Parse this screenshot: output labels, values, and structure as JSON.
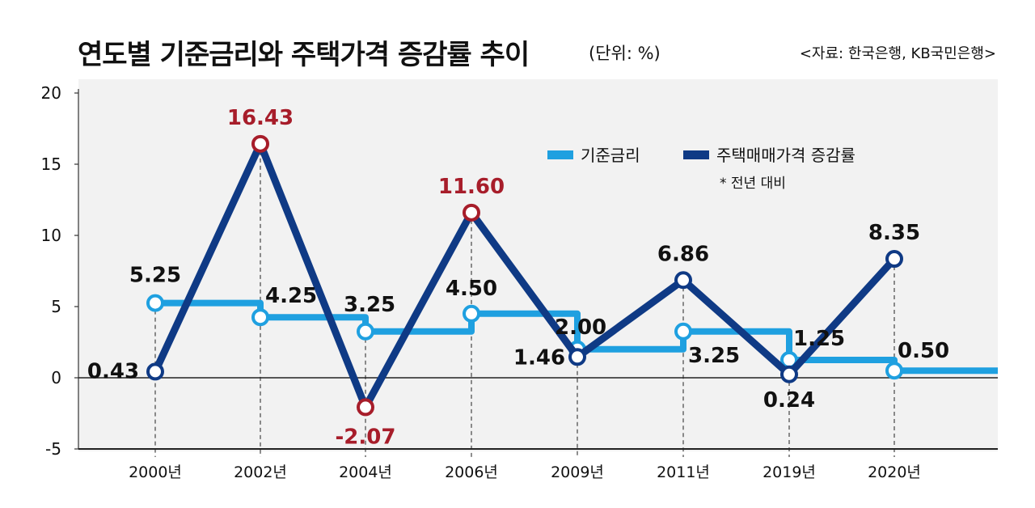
{
  "header": {
    "title": "연도별 기준금리와 주택가격 증감률 추이",
    "unit": "(단위: %)",
    "source": "<자료: 한국은행, KB국민은행>"
  },
  "chart_data": {
    "type": "line",
    "categories": [
      "2000년",
      "2002년",
      "2004년",
      "2006년",
      "2009년",
      "2011년",
      "2019년",
      "2020년"
    ],
    "ylim": [
      -5,
      20
    ],
    "yticks": [
      "-5",
      "0",
      "5",
      "10",
      "15",
      "20"
    ],
    "grid": false,
    "legend_position": "top-right",
    "note": "* 전년 대비",
    "colors": {
      "rate": "#1fa0e0",
      "house": "#0f3a85",
      "highlight": "#a71d2a",
      "plot_bg": "#f2f2f2"
    },
    "series": [
      {
        "name": "기준금리",
        "step": true,
        "values": [
          5.25,
          4.25,
          3.25,
          4.5,
          2.0,
          3.25,
          1.25,
          0.5
        ],
        "labels": [
          "5.25",
          "4.25",
          "3.25",
          "4.50",
          "2.00",
          "3.25",
          "1.25",
          "0.50"
        ]
      },
      {
        "name": "주택매매가격 증감률",
        "step": false,
        "values": [
          0.43,
          16.43,
          -2.07,
          11.6,
          1.46,
          6.86,
          0.24,
          8.35
        ],
        "labels": [
          "0.43",
          "16.43",
          "-2.07",
          "11.60",
          "1.46",
          "6.86",
          "0.24",
          "8.35"
        ],
        "highlight": [
          false,
          true,
          true,
          true,
          false,
          false,
          false,
          false
        ]
      }
    ]
  }
}
